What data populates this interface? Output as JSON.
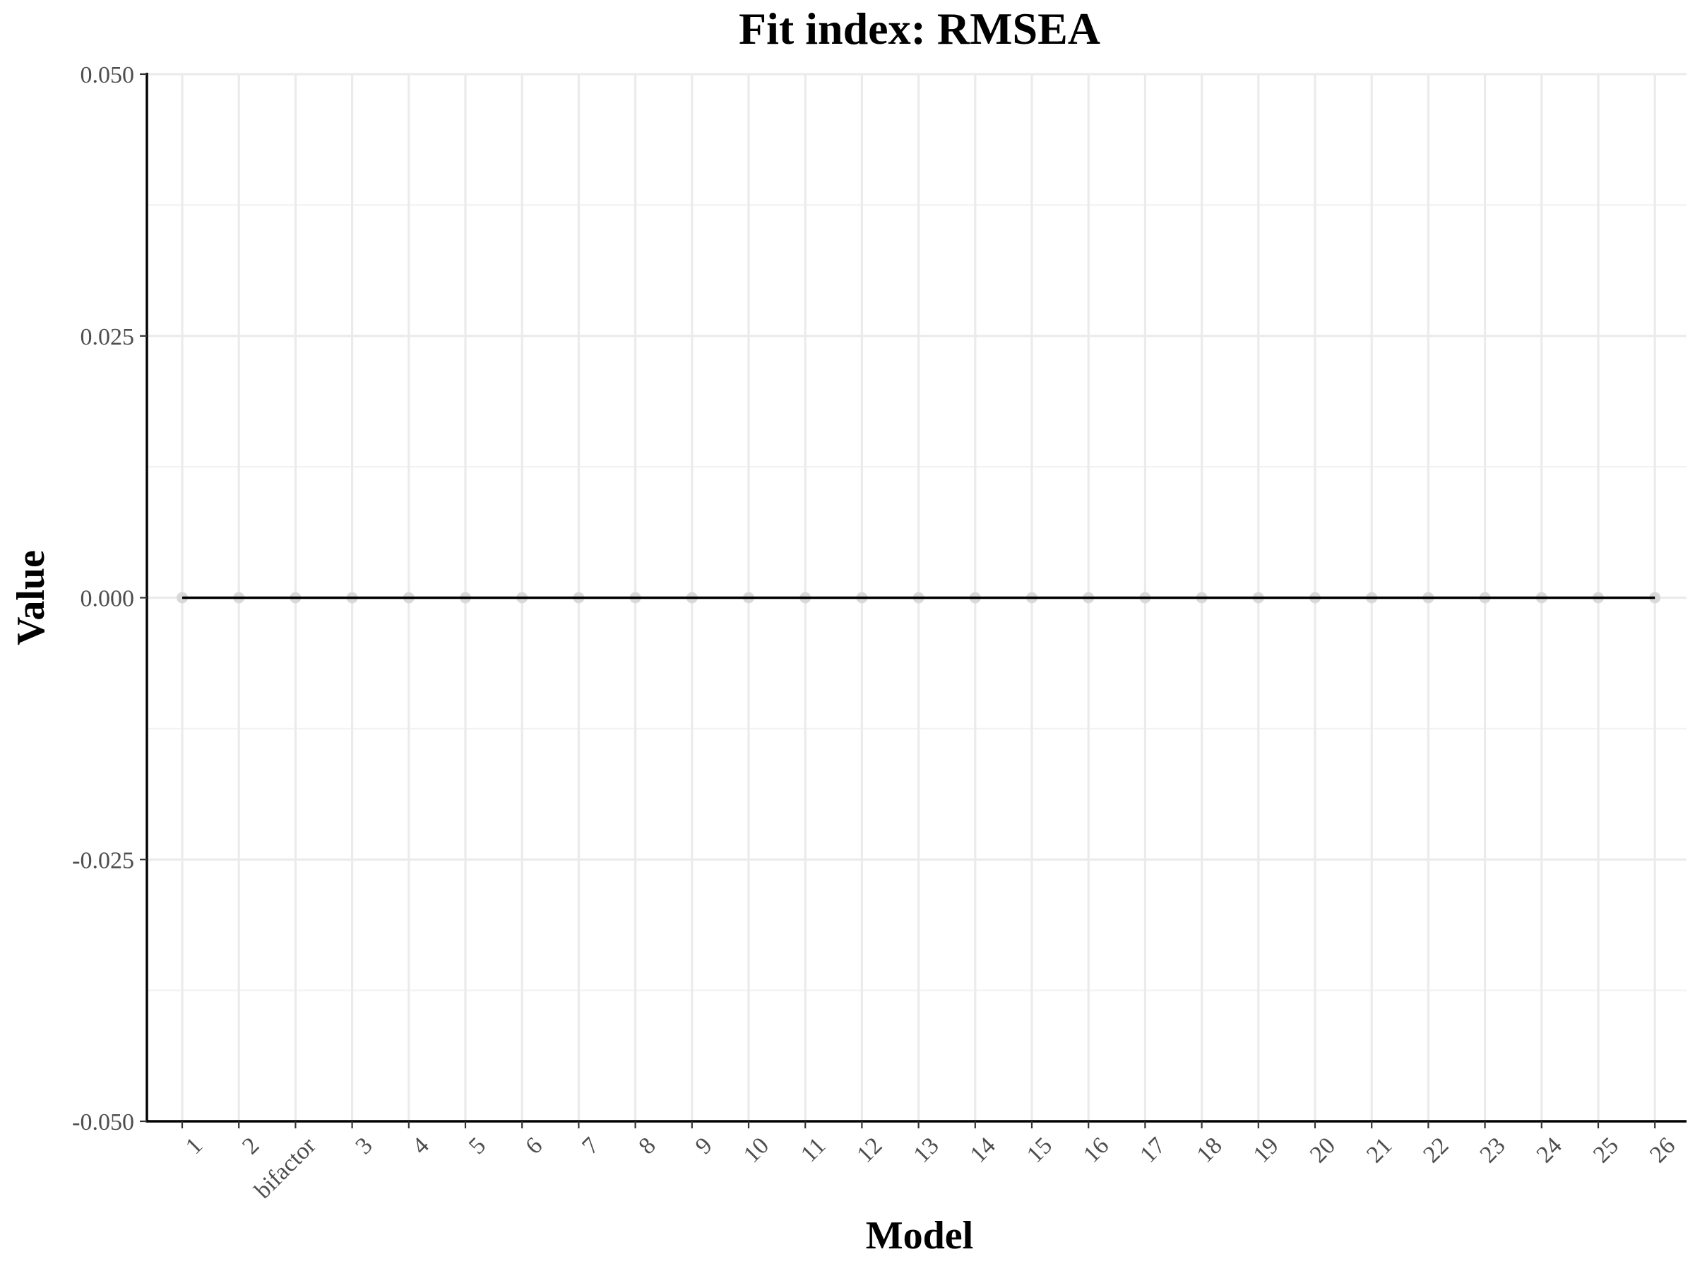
{
  "chart_data": {
    "type": "line",
    "title": "Fit index: RMSEA",
    "xlabel": "Model",
    "ylabel": "Value",
    "categories": [
      "1",
      "2",
      "bifactor",
      "3",
      "4",
      "5",
      "6",
      "7",
      "8",
      "9",
      "10",
      "11",
      "12",
      "13",
      "14",
      "15",
      "16",
      "17",
      "18",
      "19",
      "20",
      "21",
      "22",
      "23",
      "24",
      "25",
      "26"
    ],
    "values": [
      0,
      0,
      0,
      0,
      0,
      0,
      0,
      0,
      0,
      0,
      0,
      0,
      0,
      0,
      0,
      0,
      0,
      0,
      0,
      0,
      0,
      0,
      0,
      0,
      0,
      0,
      0
    ],
    "ylim": [
      -0.05,
      0.05
    ],
    "yticks": [
      -0.05,
      -0.025,
      0.0,
      0.025,
      0.05
    ],
    "ytick_labels": [
      "-0.050",
      "-0.025",
      "0.000",
      "0.025",
      "0.050"
    ],
    "grid": true,
    "legend": "none",
    "colors": {
      "line": "#000000",
      "points": "#d9d9d9",
      "grid": "#ebebeb",
      "axis": "#000000",
      "tick_text": "#4d4d4d"
    }
  }
}
